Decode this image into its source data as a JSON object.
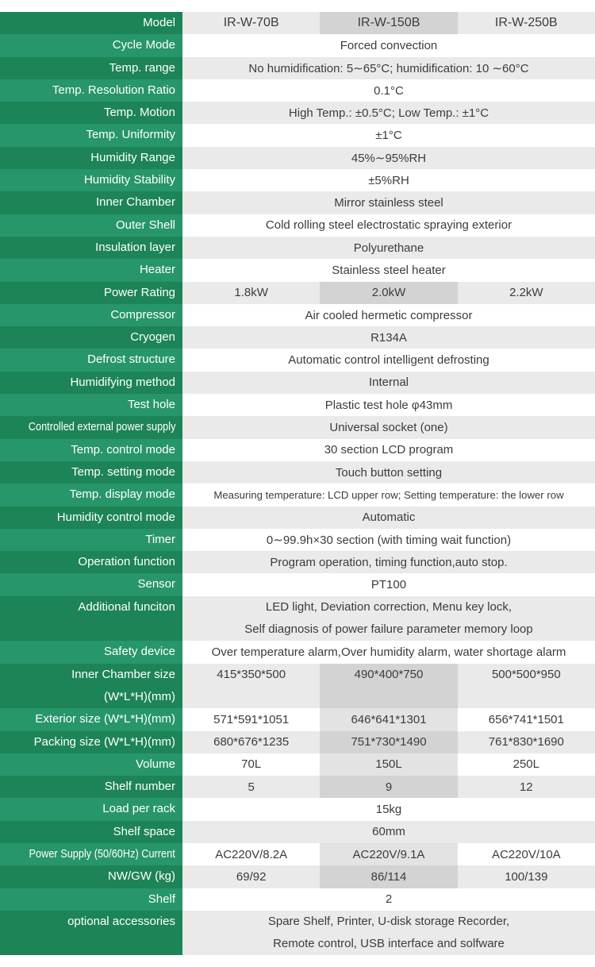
{
  "table": {
    "columns": [
      "IR-W-70B",
      "IR-W-150B",
      "IR-W-250B"
    ],
    "highlight_column": 1,
    "colors": {
      "label_green_dark": "#1d8457",
      "label_green_light": "#27966a",
      "row_gray": "#eaeaea",
      "highlight_on_gray": "#d3d3d3",
      "highlight_on_white": "#e3e3e3",
      "label_text": "#ffffff",
      "value_text": "#3c3c3c"
    },
    "rows": [
      {
        "label": "Model",
        "values": [
          "IR-W-70B",
          "IR-W-150B",
          "IR-W-250B"
        ]
      },
      {
        "label": "Cycle Mode",
        "value": "Forced convection"
      },
      {
        "label": "Temp. range",
        "value": "No humidification: 5∼65°C;  humidification: 10 ∼60°C"
      },
      {
        "label": "Temp. Resolution Ratio",
        "value": "0.1°C"
      },
      {
        "label": "Temp. Motion",
        "value": "High Temp.: ±0.5°C;  Low Temp.: ±1°C"
      },
      {
        "label": "Temp. Uniformity",
        "value": "±1°C"
      },
      {
        "label": "Humidity Range",
        "value": "45%∼95%RH"
      },
      {
        "label": "Humidity Stability",
        "value": "±5%RH"
      },
      {
        "label": "Inner Chamber",
        "value": "Mirror stainless steel"
      },
      {
        "label": "Outer Shell",
        "value": "Cold rolling steel electrostatic spraying exterior"
      },
      {
        "label": "Insulation layer",
        "value": "Polyurethane"
      },
      {
        "label": "Heater",
        "value": "Stainless steel heater"
      },
      {
        "label": "Power Rating",
        "values": [
          "1.8kW",
          "2.0kW",
          "2.2kW"
        ]
      },
      {
        "label": "Compressor",
        "value": "Air cooled hermetic compressor"
      },
      {
        "label": "Cryogen",
        "value": "R134A"
      },
      {
        "label": "Defrost structure",
        "value": "Automatic control intelligent defrosting"
      },
      {
        "label": "Humidifying method",
        "value": "Internal"
      },
      {
        "label": "Test hole",
        "value": "Plastic test hole φ43mm"
      },
      {
        "label": "Controlled external power supply",
        "value": "Universal socket (one)",
        "label_condensed": true
      },
      {
        "label": "Temp. control mode",
        "value": "30 section LCD program"
      },
      {
        "label": "Temp. setting mode",
        "value": "Touch button setting"
      },
      {
        "label": "Temp. display mode",
        "value": "Measuring temperature: LCD upper row;  Setting temperature: the lower row",
        "value_condensed": true
      },
      {
        "label": "Humidity control mode",
        "value": "Automatic"
      },
      {
        "label": "Timer",
        "value": "0∼99.9h×30 section (with timing wait function)"
      },
      {
        "label": "Operation function",
        "value": "Program operation, timing function,auto stop."
      },
      {
        "label": "Sensor",
        "value": "PT100"
      },
      {
        "label": "Additional funciton",
        "double": true,
        "lines": [
          "LED light,  Deviation correction,  Menu key lock,",
          "Self diagnosis of power failure parameter memory loop"
        ]
      },
      {
        "label": "Safety device",
        "value": "Over temperature alarm,Over humidity alarm, water shortage alarm"
      },
      {
        "label": "Inner Chamber size",
        "label2": "(W*L*H)(mm)",
        "double": true,
        "values": [
          "415*350*500",
          "490*400*750",
          "500*500*950"
        ]
      },
      {
        "label": "Exterior size (W*L*H)(mm)",
        "values": [
          "571*591*1051",
          "646*641*1301",
          "656*741*1501"
        ]
      },
      {
        "label": "Packing size (W*L*H)(mm)",
        "values": [
          "680*676*1235",
          "751*730*1490",
          "761*830*1690"
        ]
      },
      {
        "label": "Volume",
        "values": [
          "70L",
          "150L",
          "250L"
        ]
      },
      {
        "label": "Shelf number",
        "values": [
          "5",
          "9",
          "12"
        ]
      },
      {
        "label": "Load per rack",
        "value": "15kg"
      },
      {
        "label": "Shelf space",
        "value": "60mm"
      },
      {
        "label": "Power Supply (50/60Hz) Current",
        "values": [
          "AC220V/8.2A",
          "AC220V/9.1A",
          "AC220V/10A"
        ],
        "label_condensed": true
      },
      {
        "label": "NW/GW (kg)",
        "values": [
          "69/92",
          "86/114",
          "100/139"
        ]
      },
      {
        "label": "Shelf",
        "value": "2"
      },
      {
        "label": "optional accessories",
        "double": true,
        "lines": [
          "Spare Shelf,  Printer, U-disk storage Recorder,",
          "Remote control, USB interface and solfware"
        ]
      }
    ]
  }
}
